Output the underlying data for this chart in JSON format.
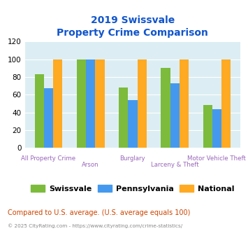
{
  "title_line1": "2019 Swissvale",
  "title_line2": "Property Crime Comparison",
  "categories": [
    "All Property Crime",
    "Arson",
    "Burglary",
    "Larceny & Theft",
    "Motor Vehicle Theft"
  ],
  "swissvale": [
    83,
    100,
    68,
    90,
    48
  ],
  "pennsylvania": [
    67,
    100,
    54,
    73,
    44
  ],
  "national": [
    100,
    100,
    100,
    100,
    100
  ],
  "color_swissvale": "#7CBB3C",
  "color_pennsylvania": "#4499EE",
  "color_national": "#FFAA22",
  "ylim": [
    0,
    120
  ],
  "yticks": [
    0,
    20,
    40,
    60,
    80,
    100,
    120
  ],
  "bg_color": "#dceef3",
  "title_color": "#1155CC",
  "xlabel_color_top": "#9966BB",
  "xlabel_color_bot": "#9966BB",
  "footer_text": "Compared to U.S. average. (U.S. average equals 100)",
  "footer_color": "#CC4400",
  "copyright_text": "© 2025 CityRating.com - https://www.cityrating.com/crime-statistics/",
  "copyright_color": "#888888",
  "legend_labels": [
    "Swissvale",
    "Pennsylvania",
    "National"
  ]
}
